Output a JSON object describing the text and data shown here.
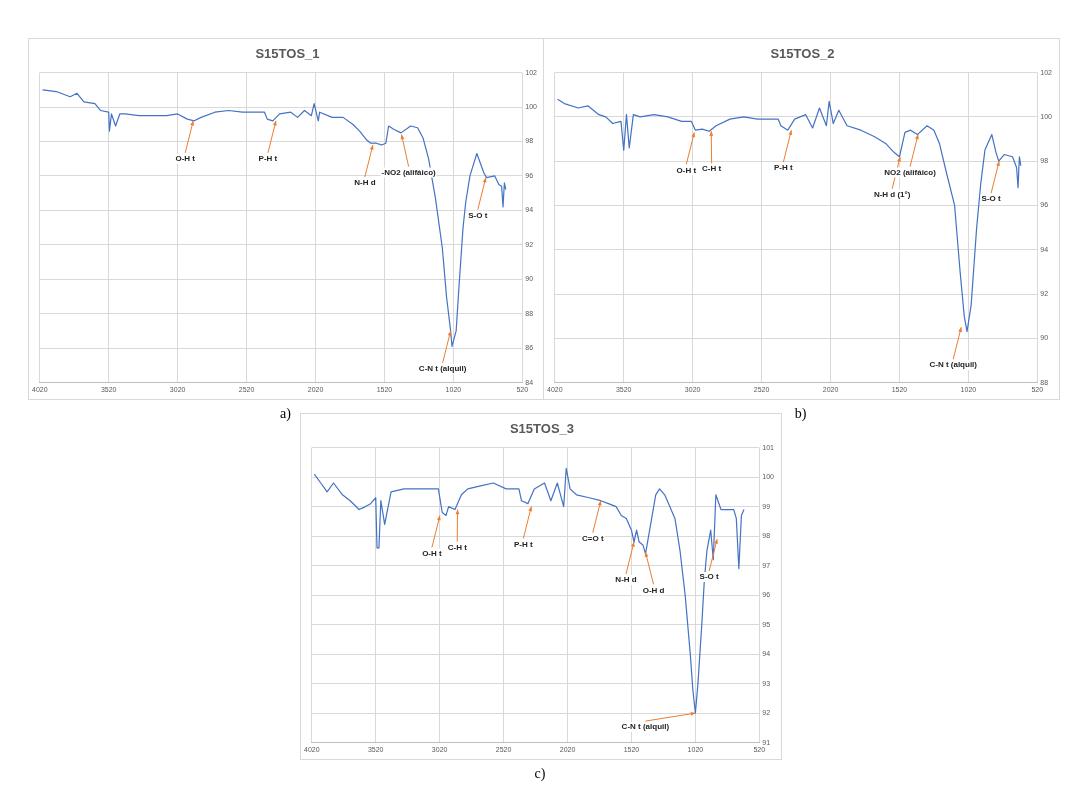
{
  "chart_data": [
    {
      "type": "line",
      "title": "S15TOS_1",
      "color": "#4472c4",
      "marker": "none",
      "grid": true,
      "xlim": [
        4020,
        520
      ],
      "xticks": [
        4020,
        3520,
        3020,
        2520,
        2020,
        1520,
        1020,
        520
      ],
      "ylim": [
        84,
        102
      ],
      "yticks": [
        84,
        86,
        88,
        90,
        92,
        94,
        96,
        98,
        100,
        102
      ],
      "x": [
        4000,
        3900,
        3800,
        3750,
        3700,
        3620,
        3580,
        3520,
        3515,
        3500,
        3470,
        3440,
        3400,
        3300,
        3200,
        3100,
        3020,
        2950,
        2900,
        2850,
        2750,
        2650,
        2550,
        2450,
        2390,
        2370,
        2330,
        2280,
        2200,
        2150,
        2100,
        2050,
        2030,
        2000,
        1990,
        1900,
        1820,
        1750,
        1700,
        1650,
        1620,
        1580,
        1540,
        1510,
        1490,
        1450,
        1400,
        1330,
        1280,
        1240,
        1200,
        1150,
        1100,
        1070,
        1040,
        1030,
        1000,
        980,
        950,
        930,
        900,
        850,
        800,
        780,
        720,
        690,
        670,
        660,
        650,
        640
      ],
      "values": [
        101.0,
        100.9,
        100.6,
        100.8,
        100.3,
        100.2,
        99.8,
        99.7,
        98.6,
        99.6,
        98.9,
        99.6,
        99.6,
        99.5,
        99.5,
        99.5,
        99.6,
        99.3,
        99.2,
        99.4,
        99.7,
        99.8,
        99.7,
        99.7,
        99.7,
        99.3,
        99.2,
        99.6,
        99.7,
        99.4,
        99.8,
        99.5,
        100.2,
        99.2,
        99.7,
        99.4,
        99.4,
        99.0,
        98.6,
        98.1,
        97.9,
        97.9,
        97.8,
        97.9,
        98.9,
        98.7,
        98.5,
        98.9,
        98.8,
        98.2,
        97.0,
        94.7,
        91.8,
        89.0,
        87.0,
        86.1,
        87.0,
        89.5,
        93.0,
        94.5,
        96.0,
        97.3,
        96.2,
        95.9,
        96.0,
        95.5,
        95.4,
        94.2,
        95.6,
        95.2
      ],
      "annotations": [
        {
          "text": "O-H t",
          "x": 2907,
          "y": 99.2
        },
        {
          "text": "P-H t",
          "x": 2307,
          "y": 99.2
        },
        {
          "text": "N-H d",
          "x": 1604,
          "y": 97.8
        },
        {
          "text": "-NO2 (alifáico)",
          "x": 1396,
          "y": 98.4
        },
        {
          "text": "C-N t (alquil)",
          "x": 1040,
          "y": 87.0
        },
        {
          "text": "S-O t",
          "x": 785,
          "y": 95.9
        },
        "a)"
      ]
    },
    {
      "type": "line",
      "title": "S15TOS_2",
      "color": "#4472c4",
      "marker": "none",
      "grid": true,
      "xlim": [
        4020,
        520
      ],
      "xticks": [
        4020,
        3520,
        3020,
        2520,
        2020,
        1520,
        1020,
        520
      ],
      "ylim": [
        88,
        102
      ],
      "yticks": [
        88,
        90,
        92,
        94,
        96,
        98,
        100,
        102
      ],
      "x": [
        4000,
        3950,
        3850,
        3780,
        3700,
        3650,
        3600,
        3540,
        3520,
        3500,
        3480,
        3450,
        3400,
        3300,
        3200,
        3100,
        3030,
        3000,
        2950,
        2900,
        2850,
        2750,
        2650,
        2550,
        2400,
        2380,
        2330,
        2280,
        2200,
        2150,
        2100,
        2050,
        2030,
        2000,
        1960,
        1900,
        1800,
        1700,
        1620,
        1560,
        1520,
        1480,
        1440,
        1390,
        1320,
        1270,
        1230,
        1180,
        1120,
        1080,
        1050,
        1030,
        1000,
        960,
        930,
        900,
        850,
        820,
        800,
        760,
        700,
        670,
        660,
        650,
        640
      ],
      "values": [
        100.8,
        100.6,
        100.4,
        100.5,
        100.1,
        100.0,
        99.7,
        99.8,
        98.5,
        100.1,
        98.6,
        100.1,
        100.0,
        100.1,
        100.0,
        99.8,
        99.8,
        99.4,
        99.45,
        99.35,
        99.6,
        99.9,
        100.0,
        99.9,
        99.9,
        99.6,
        99.4,
        99.9,
        100.1,
        99.5,
        100.4,
        99.6,
        100.7,
        99.7,
        100.3,
        99.6,
        99.4,
        99.1,
        98.8,
        98.4,
        98.2,
        99.3,
        99.4,
        99.2,
        99.6,
        99.4,
        98.8,
        97.5,
        96.0,
        93.0,
        91.0,
        90.3,
        91.5,
        95.0,
        97.0,
        98.5,
        99.2,
        98.4,
        98.0,
        98.3,
        98.2,
        97.7,
        96.8,
        98.2,
        97.8
      ],
      "annotations": [
        {
          "text": "O-H t",
          "x": 3008,
          "y": 99.3
        },
        {
          "text": "C-H t",
          "x": 2885,
          "y": 99.35
        },
        {
          "text": "P-H t",
          "x": 2304,
          "y": 99.4
        },
        {
          "text": "N-H d (1°)",
          "x": 1515,
          "y": 98.2
        },
        {
          "text": "NO2 (alifáico)",
          "x": 1385,
          "y": 99.2
        },
        {
          "text": "C-N t (alquil)",
          "x": 1072,
          "y": 90.5
        },
        {
          "text": "S-O t",
          "x": 797,
          "y": 98.0
        },
        "b)"
      ]
    },
    {
      "type": "line",
      "title": "S15TOS_3",
      "color": "#4472c4",
      "marker": "none",
      "grid": true,
      "xlim": [
        4020,
        520
      ],
      "xticks": [
        4020,
        3520,
        3020,
        2520,
        2020,
        1520,
        1020,
        520
      ],
      "ylim": [
        91,
        101
      ],
      "yticks": [
        91,
        92,
        93,
        94,
        95,
        96,
        97,
        98,
        99,
        100,
        101
      ],
      "x": [
        4000,
        3950,
        3900,
        3850,
        3780,
        3720,
        3650,
        3600,
        3560,
        3520,
        3510,
        3495,
        3480,
        3450,
        3400,
        3300,
        3200,
        3100,
        3030,
        3000,
        2970,
        2950,
        2900,
        2850,
        2800,
        2700,
        2600,
        2500,
        2400,
        2380,
        2330,
        2280,
        2200,
        2150,
        2100,
        2050,
        2030,
        2000,
        1950,
        1850,
        1760,
        1700,
        1640,
        1600,
        1560,
        1520,
        1500,
        1480,
        1460,
        1430,
        1410,
        1370,
        1330,
        1300,
        1260,
        1220,
        1180,
        1140,
        1100,
        1060,
        1040,
        1020,
        1000,
        970,
        950,
        930,
        900,
        880,
        860,
        820,
        780,
        720,
        700,
        680,
        660,
        640
      ],
      "values": [
        100.1,
        99.8,
        99.5,
        99.8,
        99.4,
        99.2,
        98.9,
        99.0,
        99.1,
        99.3,
        97.6,
        97.6,
        99.2,
        98.4,
        99.5,
        99.6,
        99.6,
        99.6,
        99.6,
        98.8,
        98.7,
        99.0,
        98.9,
        99.4,
        99.6,
        99.7,
        99.8,
        99.6,
        99.6,
        99.2,
        99.1,
        99.6,
        99.8,
        99.2,
        99.8,
        99.0,
        100.3,
        99.6,
        99.4,
        99.3,
        99.2,
        99.1,
        99.0,
        98.7,
        98.6,
        98.2,
        97.8,
        98.2,
        97.8,
        97.7,
        97.4,
        98.4,
        99.4,
        99.6,
        99.4,
        99.0,
        98.6,
        97.5,
        96.0,
        94.0,
        92.8,
        92.0,
        93.0,
        95.0,
        96.5,
        97.5,
        98.2,
        97.2,
        99.4,
        98.9,
        98.9,
        98.9,
        98.6,
        96.9,
        98.7,
        98.9
      ],
      "annotations": [
        {
          "text": "O-H t",
          "x": 3018,
          "y": 98.7
        },
        {
          "text": "C-H t",
          "x": 2880,
          "y": 98.9
        },
        {
          "text": "P-H t",
          "x": 2303,
          "y": 99.0
        },
        {
          "text": "C=O t",
          "x": 1760,
          "y": 99.2
        },
        {
          "text": "N-H d",
          "x": 1500,
          "y": 97.8
        },
        {
          "text": "O-H d",
          "x": 1410,
          "y": 97.45
        },
        {
          "text": "C-N t (alquil)",
          "x": 1020,
          "y": 92.0
        },
        {
          "text": "S-O t",
          "x": 850,
          "y": 97.9
        },
        "c)"
      ]
    }
  ]
}
